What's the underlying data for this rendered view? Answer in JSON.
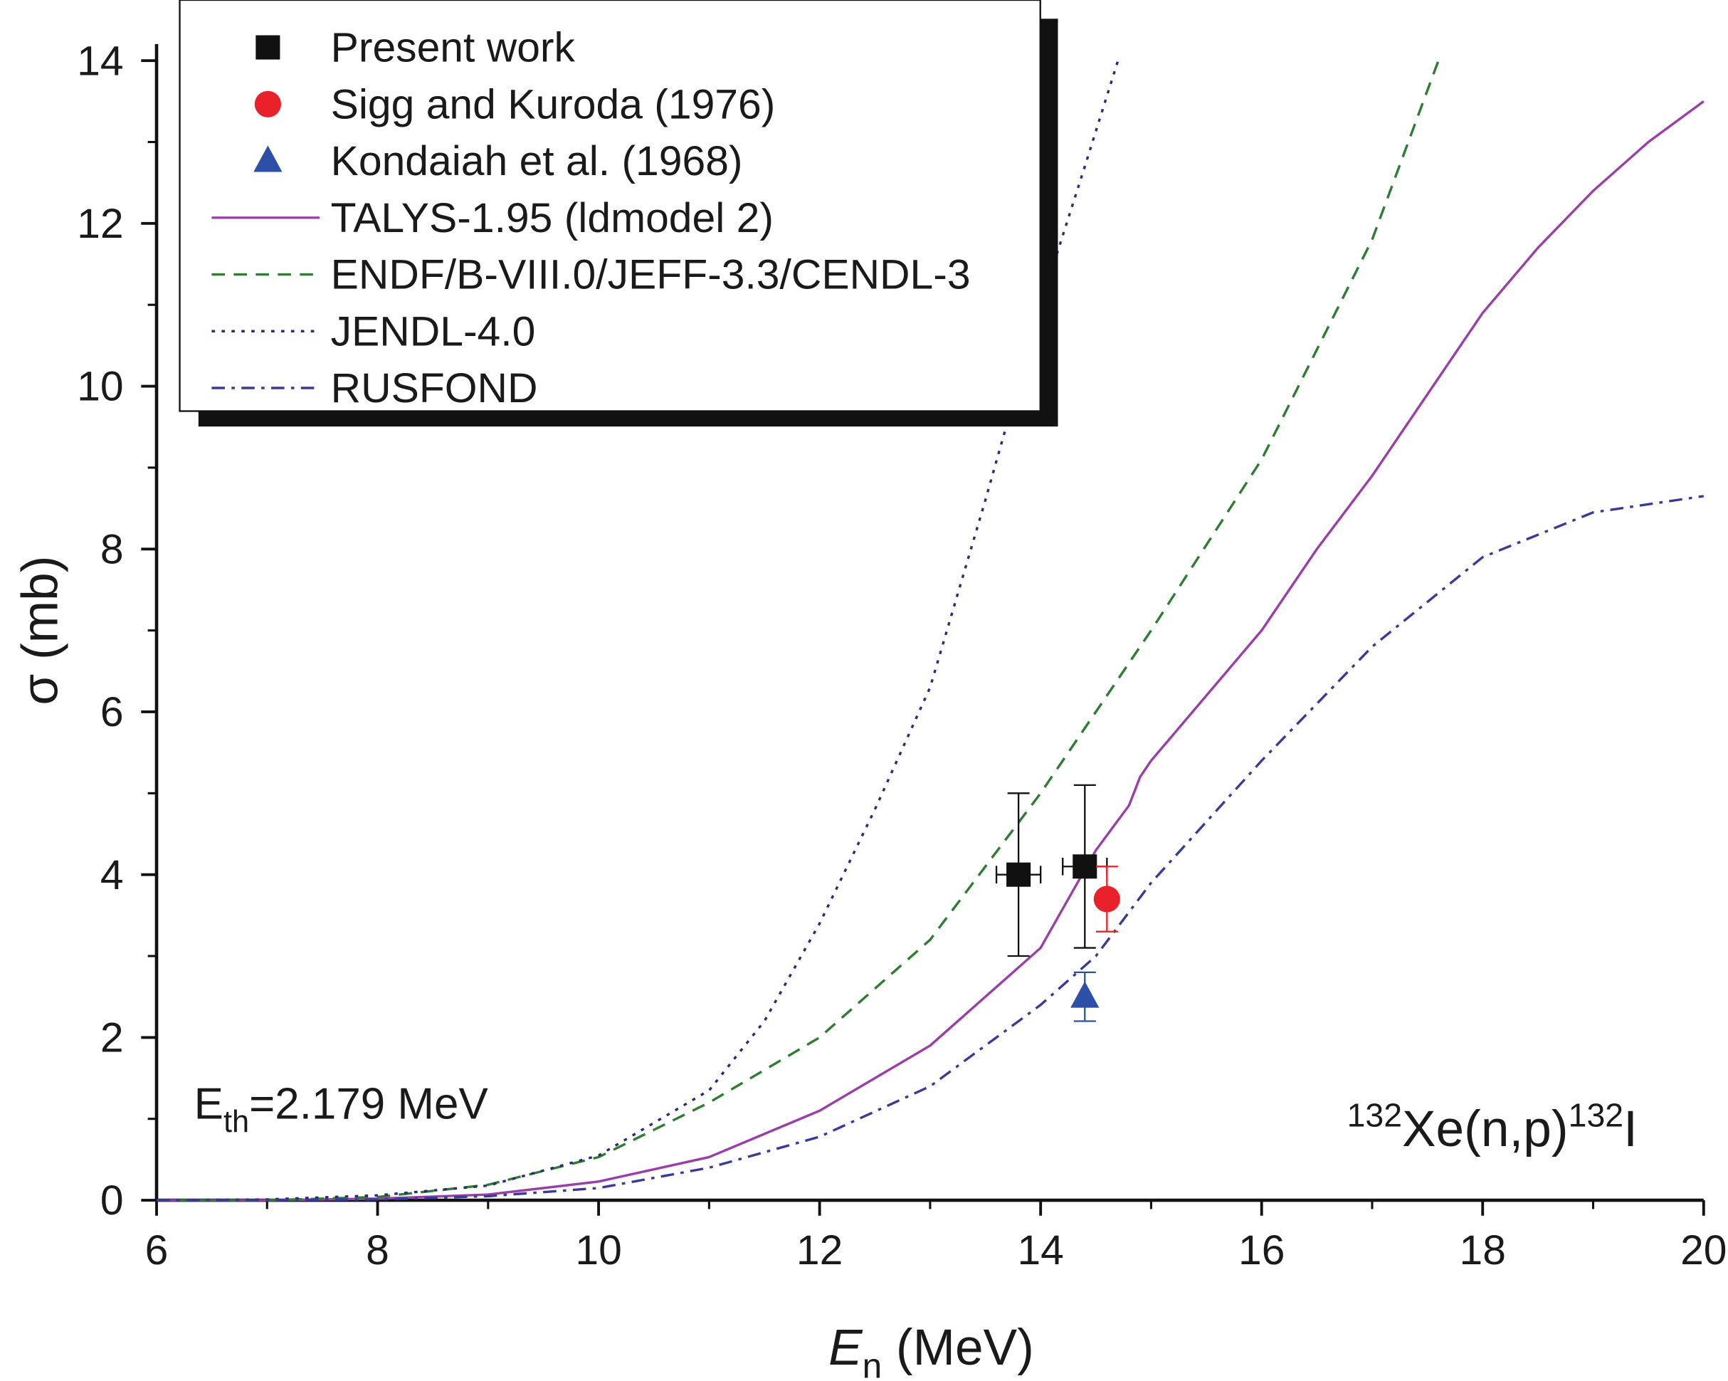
{
  "chart_data": {
    "type": "line",
    "x_label": {
      "main": "E",
      "sub": "n",
      "rest": " (MeV)"
    },
    "y_label": "σ (mb)",
    "xlim": [
      6,
      20
    ],
    "xticks": [
      6,
      8,
      10,
      12,
      14,
      16,
      18,
      20
    ],
    "ylim": [
      0,
      14
    ],
    "yticks": [
      0,
      2,
      4,
      6,
      8,
      10,
      12,
      14
    ],
    "threshold_label": {
      "main": "E",
      "sub": "th",
      "rest": "=2.179 MeV"
    },
    "reaction_label": {
      "sup1": "132",
      "t1": "Xe(n,p)",
      "sup2": "132",
      "t2": "I"
    },
    "series": [
      {
        "name": "Present work",
        "color": "#111111",
        "marker": "square",
        "x": [
          13.8,
          14.4
        ],
        "values": [
          4.0,
          4.1
        ],
        "errors": [
          1.0,
          1.0
        ],
        "xerrors": [
          0.2,
          0.2
        ]
      },
      {
        "name": "Sigg and Kuroda (1976)",
        "color": "#e8212a",
        "marker": "circle",
        "x": [
          14.6
        ],
        "values": [
          3.7
        ],
        "errors": [
          0.4
        ]
      },
      {
        "name": "Kondaiah et al. (1968)",
        "color": "#2e4fa8",
        "marker": "triangle",
        "x": [
          14.4
        ],
        "values": [
          2.5
        ],
        "errors": [
          0.3
        ]
      },
      {
        "name": "TALYS-1.95 (ldmodel 2)",
        "color": "#9b3fa8",
        "dash": "solid",
        "x": [
          6,
          7,
          8,
          9,
          10,
          11,
          12,
          13,
          14,
          14.5,
          14.8,
          14.9,
          15,
          15.5,
          16,
          16.5,
          17,
          17.5,
          18,
          18.5,
          19,
          19.5,
          20
        ],
        "values": [
          0,
          0,
          0.02,
          0.07,
          0.23,
          0.53,
          1.1,
          1.9,
          3.1,
          4.3,
          4.85,
          5.2,
          5.4,
          6.2,
          7.0,
          8.0,
          8.9,
          9.9,
          10.9,
          11.7,
          12.4,
          13.0,
          13.5
        ]
      },
      {
        "name": "ENDF/B-VIII.0/JEFF-3.3/CENDL-3",
        "color": "#2e7d32",
        "dash": "dashed",
        "x": [
          6,
          7,
          8,
          9,
          10,
          11,
          12,
          13,
          14,
          15,
          16,
          17,
          17.6
        ],
        "values": [
          0,
          0,
          0.04,
          0.19,
          0.53,
          1.2,
          2.0,
          3.2,
          5.0,
          7.0,
          9.1,
          11.8,
          14
        ]
      },
      {
        "name": "JENDL-4.0",
        "color": "#2b2b7a",
        "dash": "dotted",
        "x": [
          6,
          7,
          8,
          9,
          10,
          11,
          11.5,
          12,
          12.5,
          13,
          13.5,
          14,
          14.4,
          14.7
        ],
        "values": [
          0,
          0.01,
          0.06,
          0.18,
          0.55,
          1.35,
          2.2,
          3.4,
          4.8,
          6.3,
          8.6,
          11.0,
          12.7,
          14
        ]
      },
      {
        "name": "RUSFOND",
        "color": "#3a3a9a",
        "dash": "dashdot",
        "x": [
          6,
          7,
          8,
          9,
          10,
          11,
          12,
          13,
          14,
          14.5,
          15,
          16,
          17,
          18,
          19,
          20
        ],
        "values": [
          0,
          0,
          0.01,
          0.05,
          0.15,
          0.4,
          0.78,
          1.4,
          2.4,
          3.0,
          3.9,
          5.4,
          6.8,
          7.9,
          8.45,
          8.65
        ]
      }
    ]
  }
}
